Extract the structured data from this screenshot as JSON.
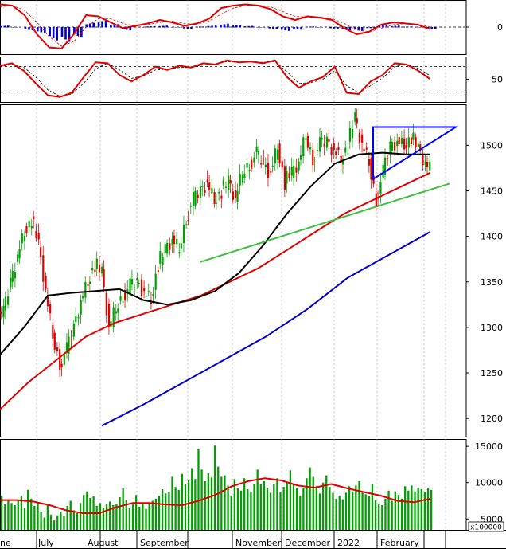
{
  "chart_data": [
    {
      "panel": "macd",
      "type": "line",
      "y_tick_labels": [
        "0"
      ],
      "ylim": [
        -1,
        1
      ],
      "colors": {
        "line": "#e00000",
        "signal": "#e00000",
        "histogram": "#0000cc"
      },
      "series": [
        {
          "values": [
            0.95,
            0.9,
            0.5,
            -0.3,
            -0.85,
            -0.9,
            -0.3,
            0.5,
            0.45,
            0.2,
            -0.05,
            0.05,
            0.15,
            0.3,
            0.2,
            0.05,
            0.15,
            0.35,
            0.8,
            0.9,
            0.95,
            0.9,
            0.75,
            0.45,
            0.3,
            0.45,
            0.4,
            0.3,
            -0.05,
            -0.3,
            -0.2,
            0.1,
            0.2,
            0.15,
            0.1,
            -0.1
          ]
        },
        {
          "values": [
            0.85,
            0.9,
            0.7,
            0.2,
            -0.4,
            -0.8,
            -0.6,
            0.0,
            0.35,
            0.35,
            0.15,
            0.05,
            0.1,
            0.2,
            0.25,
            0.15,
            0.12,
            0.25,
            0.55,
            0.8,
            0.9,
            0.92,
            0.85,
            0.65,
            0.45,
            0.42,
            0.42,
            0.36,
            0.15,
            -0.12,
            -0.2,
            -0.05,
            0.1,
            0.15,
            0.12,
            0.0
          ]
        }
      ],
      "histogram": [
        0.05,
        0.0,
        -0.1,
        -0.2,
        -0.45,
        -0.5,
        -0.35,
        0.15,
        0.25,
        0.1,
        -0.1,
        0.0,
        0.03,
        0.05,
        0.0,
        -0.05,
        0.02,
        0.05,
        0.12,
        0.08,
        0.04,
        0.0,
        -0.05,
        -0.12,
        -0.08,
        0.02,
        0.0,
        -0.04,
        -0.1,
        -0.12,
        -0.03,
        0.08,
        0.05,
        0.02,
        0.0,
        -0.05
      ]
    },
    {
      "panel": "stochastic",
      "type": "line",
      "y_tick_labels": [
        "50"
      ],
      "ylim": [
        0,
        100
      ],
      "reference_lines": [
        20,
        80
      ],
      "colors": {
        "k": "#e00000",
        "d": "#000000"
      },
      "series": [
        {
          "values": [
            82,
            88,
            70,
            40,
            12,
            8,
            18,
            55,
            90,
            88,
            60,
            45,
            60,
            80,
            72,
            82,
            78,
            88,
            85,
            95,
            90,
            92,
            88,
            95,
            55,
            30,
            45,
            55,
            80,
            18,
            15,
            45,
            60,
            88,
            85,
            70,
            50
          ]
        },
        {
          "values": [
            80,
            85,
            78,
            55,
            25,
            10,
            15,
            40,
            75,
            88,
            72,
            52,
            58,
            72,
            74,
            78,
            78,
            84,
            86,
            92,
            90,
            92,
            90,
            92,
            68,
            40,
            42,
            50,
            70,
            35,
            18,
            35,
            52,
            80,
            86,
            76,
            58
          ]
        }
      ]
    },
    {
      "panel": "price",
      "type": "line",
      "y_tick_labels": [
        "1200",
        "1250",
        "1300",
        "1350",
        "1400",
        "1450",
        "1500"
      ],
      "ylim": [
        1180,
        1545
      ],
      "colors": {
        "up": "#00a000",
        "down": "#e00000",
        "ma50": "#000000",
        "ma100": "#e00000",
        "ma200": "#0000cc",
        "trendline": "#40c040",
        "triangle": "#0000ff"
      },
      "price_series": [
        1315,
        1350,
        1380,
        1405,
        1420,
        1390,
        1340,
        1290,
        1260,
        1275,
        1300,
        1330,
        1350,
        1370,
        1360,
        1300,
        1320,
        1335,
        1345,
        1350,
        1340,
        1330,
        1370,
        1385,
        1395,
        1385,
        1420,
        1440,
        1450,
        1460,
        1440,
        1450,
        1460,
        1440,
        1470,
        1480,
        1490,
        1480,
        1470,
        1500,
        1460,
        1470,
        1480,
        1510,
        1485,
        1500,
        1505,
        1495,
        1485,
        1500,
        1530,
        1500,
        1480,
        1440,
        1470,
        1500,
        1505,
        1500,
        1510,
        1495,
        1480,
        1470
      ],
      "series": [
        {
          "name": "MA50",
          "values": [
            1270,
            1300,
            1335,
            1338,
            1340,
            1342,
            1330,
            1325,
            1330,
            1340,
            1360,
            1390,
            1425,
            1455,
            1480,
            1490,
            1492,
            1490,
            1490
          ]
        },
        {
          "name": "MA100",
          "values": [
            1210,
            1240,
            1265,
            1290,
            1305,
            1315,
            1325,
            1335,
            1350,
            1365,
            1385,
            1405,
            1425,
            1440,
            1455,
            1470
          ]
        },
        {
          "name": "MA200",
          "values": [
            1192,
            1215,
            1240,
            1265,
            1290,
            1320,
            1355,
            1380,
            1405
          ]
        }
      ],
      "trendline": [
        1372,
        1458
      ],
      "triangle": {
        "top": 1520,
        "bottom_left": 1463,
        "apex": 1520
      }
    },
    {
      "panel": "volume",
      "type": "bar",
      "y_tick_labels": [
        "5000",
        "10000",
        "15000"
      ],
      "unit_label": "x100000",
      "ylim": [
        3500,
        16000
      ],
      "colors": {
        "bars": "#00a000",
        "ma": "#e00000"
      },
      "values": [
        8200,
        7000,
        7500,
        7200,
        6900,
        7500,
        8200,
        6500,
        9000,
        7800,
        6800,
        7300,
        6000,
        5200,
        6900,
        5600,
        4800,
        5500,
        6000,
        5400,
        6800,
        7500,
        6200,
        5800,
        7200,
        8300,
        8800,
        7900,
        8100,
        6800,
        7200,
        6500,
        7000,
        7400,
        6900,
        7100,
        8000,
        9200,
        7600,
        6500,
        7000,
        8300,
        6700,
        7300,
        6400,
        7000,
        7500,
        7800,
        8200,
        9100,
        8500,
        8700,
        10800,
        9400,
        9000,
        11200,
        9800,
        10300,
        12000,
        10500,
        14600,
        11800,
        10200,
        11300,
        10700,
        15100,
        12200,
        10800,
        11000,
        9600,
        8200,
        10500,
        9200,
        8900,
        10600,
        9100,
        8700,
        9800,
        11800,
        9800,
        10200,
        9300,
        8600,
        9800,
        10600,
        8700,
        9400,
        10000,
        11700,
        9700,
        9200,
        8200,
        9300,
        10600,
        12100,
        10800,
        9500,
        8500,
        10000,
        11000,
        9400,
        8600,
        7800,
        8200,
        7700,
        8600,
        9500,
        8800,
        9600,
        10200,
        8800,
        8400,
        8200,
        9800,
        7600,
        7000,
        6900,
        7800,
        8900,
        7500,
        8800,
        8300,
        7800,
        9500,
        8900,
        9600,
        8800,
        9300,
        9100,
        8700,
        9300,
        9000
      ],
      "ma_values": [
        7600,
        7600,
        7400,
        6900,
        6200,
        5800,
        5800,
        6600,
        7200,
        7200,
        7000,
        6900,
        7500,
        8300,
        9500,
        10200,
        10600,
        10300,
        9600,
        9300,
        9800,
        9200,
        8700,
        8200,
        7500,
        7300,
        7800
      ]
    }
  ],
  "x_axis": {
    "labels": [
      "ne",
      "July",
      "August",
      "September",
      "November",
      "December",
      "2022",
      "February"
    ]
  }
}
